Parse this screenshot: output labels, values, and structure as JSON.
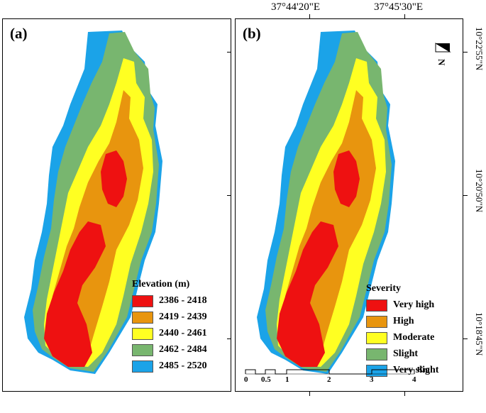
{
  "panels": {
    "a": {
      "label": "(a)"
    },
    "b": {
      "label": "(b)"
    }
  },
  "coords": {
    "lon1": "37°44'20\"E",
    "lon2": "37°45'30\"E",
    "lat1": "10°22'55\"N",
    "lat2": "10°20'50\"N",
    "lat3": "10°18'45\"N"
  },
  "legend_a": {
    "title": "Elevation (m)",
    "items": [
      {
        "label": "2386 - 2418",
        "color": "#ee1111"
      },
      {
        "label": "2419 - 2439",
        "color": "#e8950e"
      },
      {
        "label": "2440 - 2461",
        "color": "#ffff22"
      },
      {
        "label": "2462 - 2484",
        "color": "#78b66f"
      },
      {
        "label": "2485 - 2520",
        "color": "#1ba3e8"
      }
    ]
  },
  "legend_b": {
    "title": "Severity",
    "items": [
      {
        "label": "Very high",
        "color": "#ee1111"
      },
      {
        "label": "High",
        "color": "#e8950e"
      },
      {
        "label": "Moderate",
        "color": "#ffff22"
      },
      {
        "label": "Slight",
        "color": "#78b66f"
      },
      {
        "label": "Very slight",
        "color": "#1ba3e8"
      }
    ]
  },
  "scale_bar": {
    "unit": "Km",
    "ticks": [
      "0",
      "0.5",
      "1",
      "2",
      "3",
      "4"
    ]
  }
}
